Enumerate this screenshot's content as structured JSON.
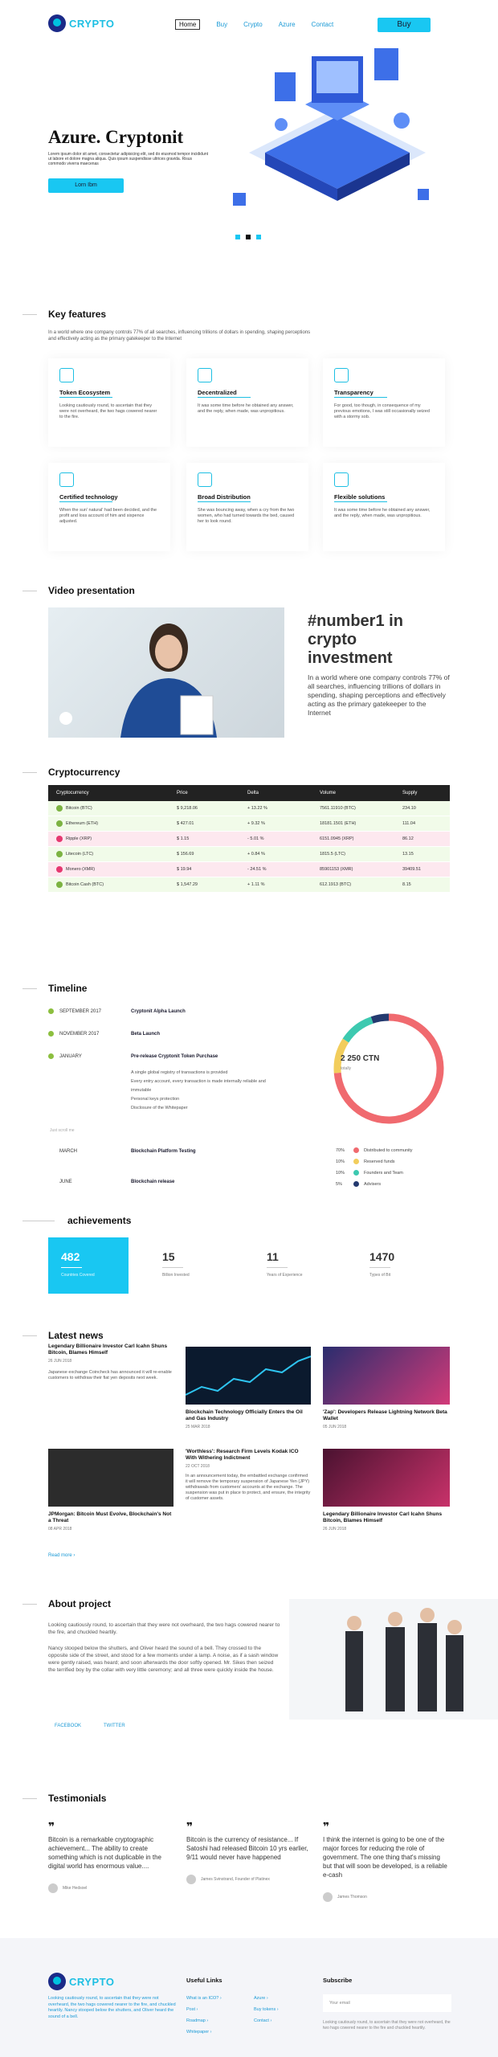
{
  "header": {
    "logo": "CRYPTO",
    "nav": [
      "Home",
      "Buy",
      "Crypto",
      "Azure",
      "Contact"
    ],
    "buy_label": "Buy"
  },
  "hero": {
    "title": "Azure. Cryptonit",
    "text": "Lorem ipsum dolor sit amet, consectetur adipisicing elit, sed do eiusmod tempor incididunt ut labore et dolore magna aliqua. Quis ipsum suspendisse ultrices gravida. Risus commodo viverra maecenas",
    "button": "Lorn Ibm"
  },
  "features": {
    "title": "Key features",
    "intro": "In a world where one company controls 77% of all searches, influencing trillions of dollars in spending, shaping perceptions and effectively acting as the primary gatekeeper to the Internet",
    "items": [
      {
        "title": "Token Ecosystem",
        "icon": "token-icon",
        "text": "Looking cautiously round, to ascertain that they were not overheard, the two hags cowered nearer to the fire."
      },
      {
        "title": "Decentralized",
        "icon": "decentralized-icon",
        "text": "It was some time before he obtained any answer, and the reply, when made, was unpropitious."
      },
      {
        "title": "Transparency",
        "icon": "transparency-icon",
        "text": "For good, too though, in consequence of my previous emotions, I was still occasionally seized with a stormy sob."
      },
      {
        "title": "Certified technology",
        "icon": "certified-icon",
        "text": "When the sun' natural' had been decided, and the profit and loss account of him and sixpence adjusted."
      },
      {
        "title": "Broad Distribution",
        "icon": "distribution-icon",
        "text": "She was bouncing away, when a cry from the two women, who had turned towards the bed, caused her to look round."
      },
      {
        "title": "Flexible solutions",
        "icon": "flexible-icon",
        "text": "It was some time before he obtained any answer, and the reply, when made, was unpropitious."
      }
    ]
  },
  "video": {
    "title": "Video presentation",
    "headline": "#number1 in crypto investment",
    "text": "In a world where one company controls 77% of all searches, influencing trillions of dollars in spending, shaping perceptions and effectively acting as the primary gatekeeper to the Internet"
  },
  "crypto": {
    "title": "Cryptocurrency",
    "headers": [
      "Cryptocurrency",
      "Price",
      "Delta",
      "Volume",
      "Supply"
    ],
    "rows": [
      {
        "name": "Bitcoin (BTC)",
        "price": "$ 9,218.06",
        "delta": "+ 13.22 %",
        "volume": "7561.11910 (BTC)",
        "supply": "234.10",
        "bg": "#f1fbe9",
        "coin": "#7cb342"
      },
      {
        "name": "Ethereum (ETH)",
        "price": "$ 427.01",
        "delta": "+ 9.32 %",
        "volume": "18181.1501 (ETH)",
        "supply": "111.04",
        "bg": "#f1fbe9",
        "coin": "#7cb342"
      },
      {
        "name": "Ripple (XRP)",
        "price": "$ 1.15",
        "delta": "- 5.01 %",
        "volume": "6151.0945 (XRP)",
        "supply": "86.12",
        "bg": "#fde8ef",
        "coin": "#e53970"
      },
      {
        "name": "Litecoin (LTC)",
        "price": "$ 156.69",
        "delta": "+ 0.84 %",
        "volume": "1815.5 (LTC)",
        "supply": "13.15",
        "bg": "#f1fbe9",
        "coin": "#7cb342"
      },
      {
        "name": "Monero (XMR)",
        "price": "$ 19.94",
        "delta": "- 24.51 %",
        "volume": "85901153 (XMR)",
        "supply": "39409.51",
        "bg": "#fde8ef",
        "coin": "#e53970"
      },
      {
        "name": "Bitcoin Cash (BTC)",
        "price": "$ 1,547.29",
        "delta": "+ 1.11 %",
        "volume": "612.1913 (BTC)",
        "supply": "8.15",
        "bg": "#f1fbe9",
        "coin": "#7cb342"
      }
    ]
  },
  "timeline": {
    "title": "Timeline",
    "items": [
      {
        "date": "SEPTEMBER 2017",
        "event": "Cryptonit Alpha Launch"
      },
      {
        "date": "NOVEMBER 2017",
        "event": "Beta Launch"
      },
      {
        "date": "JANUARY",
        "event": "Pre-release Cryptonit Token Purchase"
      }
    ],
    "sub": [
      "A single global registry of transactions is provided",
      "Every entry account, every transaction is made internally reliable and immutable",
      "Personal keys protection",
      "Disclosure of the Whitepaper"
    ],
    "future_label": "Just scroll me",
    "later": [
      {
        "date": "MARCH",
        "event": "Blockchain Platform Testing"
      },
      {
        "date": "JUNE",
        "event": "Blockchain release"
      }
    ],
    "donut_value": "2 250 CTN",
    "donut_label": "totally",
    "legend": [
      {
        "pct": "70%",
        "label": "Distributed to community",
        "color": "#f06a6f",
        "value": 70
      },
      {
        "pct": "10%",
        "label": "Reserved funds",
        "color": "#f2cd5c",
        "value": 10
      },
      {
        "pct": "10%",
        "label": "Founders and Team",
        "color": "#3dc9b0",
        "value": 10
      },
      {
        "pct": "5%",
        "label": "Advisers",
        "color": "#243a6f",
        "value": 5
      }
    ]
  },
  "achievements": {
    "title": "achievements",
    "items": [
      {
        "n": "482",
        "l": "Countries Covered"
      },
      {
        "n": "15",
        "l": "Billion Invested"
      },
      {
        "n": "11",
        "l": "Years of Experience"
      },
      {
        "n": "1470",
        "l": "Types of Bit"
      }
    ]
  },
  "news": {
    "title": "Latest news",
    "more": "Read more ›",
    "items": [
      {
        "title": "Legendary Billionaire Investor Carl Icahn Shuns Bitcoin, Blames Himself",
        "date": "26 JUN 2018",
        "text": "Japanese exchange Coincheck has announced it will re-enable customers to withdraw their fiat yen deposits next week."
      },
      {
        "title": "Blockchain Technology Officially Enters the Oil and Gas Industry",
        "date": "25 MAR 2018"
      },
      {
        "title": "'Zap': Developers Release Lightning Network Beta Wallet",
        "date": "05 JUN 2018"
      },
      {
        "title": "JPMorgan: Bitcoin Must Evolve, Blockchain's Not a Threat",
        "date": "08 APR 2018"
      },
      {
        "title": "'Worthless': Research Firm Levels Kodak ICO With Withering Indictment",
        "date": "22 OCT 2018",
        "text": "In an announcement today, the embattled exchange confirmed it will remove the temporary suspension of Japanese Yen (JPY) withdrawals from customers' accounts at the exchange. The suspension was put in place to protect, and ensure, the integrity of customer assets."
      },
      {
        "title": "Legendary Billionaire Investor Carl Icahn Shuns Bitcoin, Blames Himself",
        "date": "26 JUN 2018"
      }
    ]
  },
  "about": {
    "title": "About project",
    "p1": "Looking cautiously round, to ascertain that they were not overheard, the two hags cowered nearer to the fire, and chuckled heartily.",
    "p2": "Nancy stooped below the shutters, and Oliver heard the sound of a bell. They crossed to the opposite side of the street, and stood for a few moments under a lamp. A noise, as if a sash window were gently raised, was heard; and soon afterwards the door softly opened. Mr. Sikes then seized the terrified boy by the collar with very little ceremony; and all three were quickly inside the house.",
    "facebook": "FACEBOOK",
    "twitter": "TWITTER"
  },
  "testimonials": {
    "title": "Testimonials",
    "items": [
      {
        "text": "Bitcoin is a remarkable cryptographic achievement... The ability to create something which is not duplicable in the digital world has enormous value....",
        "author": "Mike Hedsoel"
      },
      {
        "text": "Bitcoin is the currency of resistance... If Satoshi had released Bitcoin 10 yrs earlier, 9/11 would never have happened",
        "author": "James Svinstrand, Founder of Platinex"
      },
      {
        "text": "I think the internet is going to be one of the major forces for reducing the role of government. The one thing that's missing but that will soon be developed, is a reliable e-cash",
        "author": "James Thomson"
      }
    ]
  },
  "footer": {
    "about": "Looking cautiously round, to ascertain that they were not overheard, the two hags cowered nearer to the fire, and chuckled heartily. Nancy stooped below the shutters, and Oliver heard the sound of a bell.",
    "links_title": "Useful Links",
    "links": [
      "What is an ICO? ›",
      "Post ›",
      "Roadmap ›",
      "Whitepaper ›",
      "Azure ›",
      "Buy tokens ›",
      "Contact ›"
    ],
    "subscribe_title": "Subscribe",
    "subscribe_placeholder": "Your email",
    "subscribe_text": "Looking cautiously round, to ascertain that they were not overheard, the two hags cowered nearer to the fire and chuckled heartily."
  }
}
